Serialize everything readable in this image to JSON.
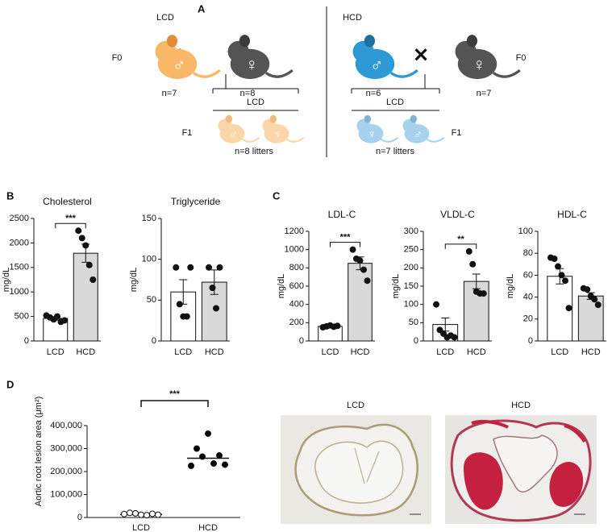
{
  "panel_a": {
    "letter": "A",
    "cross": "✕",
    "male": "♂",
    "female": "♀",
    "left": {
      "diet": "LCD",
      "generation_f0": "F0",
      "n_sire": "n=7",
      "n_dam": "n=8",
      "offspring_diet": "LCD",
      "generation_f1": "F1",
      "litters": "n=8 litters"
    },
    "right": {
      "diet": "HCD",
      "generation_f0": "F0",
      "n_sire": "n=6",
      "n_dam": "n=7",
      "offspring_diet": "LCD",
      "generation_f1": "F1",
      "litters": "n=7 litters"
    }
  },
  "panel_letters": {
    "b": "B",
    "c": "C",
    "d": "D"
  },
  "panel_d_images": [
    {
      "label": "LCD"
    },
    {
      "label": "HCD"
    }
  ],
  "chart_data": [
    {
      "type": "bar",
      "title": "Cholesterol",
      "ylabel": "mg/dL",
      "categories": [
        "LCD",
        "HCD"
      ],
      "values": [
        460,
        1790
      ],
      "errors": [
        35,
        185
      ],
      "points": [
        [
          520,
          480,
          440,
          500,
          390,
          420
        ],
        [
          2250,
          2100,
          1950,
          1550,
          1250
        ]
      ],
      "colors": [
        "#ffffff",
        "#d9d9d9"
      ],
      "ylim": [
        0,
        2500
      ],
      "yticks": [
        0,
        500,
        1000,
        1500,
        2000,
        2500
      ],
      "significance": "***"
    },
    {
      "type": "bar",
      "title": "Triglyceride",
      "ylabel": "mg/dL",
      "categories": [
        "LCD",
        "HCD"
      ],
      "values": [
        60,
        72
      ],
      "errors": [
        15,
        15
      ],
      "points": [
        [
          90,
          45,
          30,
          30,
          90
        ],
        [
          90,
          65,
          40,
          90
        ]
      ],
      "colors": [
        "#ffffff",
        "#d9d9d9"
      ],
      "ylim": [
        0,
        150
      ],
      "yticks": [
        0,
        50,
        100,
        150
      ]
    },
    {
      "type": "bar",
      "title": "LDL-C",
      "ylabel": "mg/dL",
      "categories": [
        "LCD",
        "HCD"
      ],
      "values": [
        160,
        850
      ],
      "errors": [
        15,
        70
      ],
      "points": [
        [
          150,
          160,
          170,
          155,
          165
        ],
        [
          1000,
          900,
          880,
          780,
          660
        ]
      ],
      "colors": [
        "#ffffff",
        "#d9d9d9"
      ],
      "ylim": [
        0,
        1200
      ],
      "yticks": [
        0,
        200,
        400,
        600,
        800,
        1000,
        1200
      ],
      "significance": "***"
    },
    {
      "type": "bar",
      "title": "VLDL-C",
      "ylabel": "mg/dL",
      "categories": [
        "LCD",
        "HCD"
      ],
      "values": [
        45,
        163
      ],
      "errors": [
        18,
        20
      ],
      "points": [
        [
          100,
          30,
          20,
          10,
          15,
          10
        ],
        [
          245,
          210,
          135,
          130,
          130
        ]
      ],
      "colors": [
        "#ffffff",
        "#d9d9d9"
      ],
      "ylim": [
        0,
        300
      ],
      "yticks": [
        0,
        50,
        100,
        150,
        200,
        250,
        300
      ],
      "significance": "**"
    },
    {
      "type": "bar",
      "title": "HDL-C",
      "ylabel": "mg/dL",
      "categories": [
        "LCD",
        "HCD"
      ],
      "values": [
        59,
        41
      ],
      "errors": [
        7,
        3
      ],
      "points": [
        [
          76,
          75,
          68,
          60,
          55,
          30
        ],
        [
          48,
          47,
          41,
          38,
          33
        ]
      ],
      "colors": [
        "#ffffff",
        "#d9d9d9"
      ],
      "ylim": [
        0,
        100
      ],
      "yticks": [
        0,
        20,
        40,
        60,
        80,
        100
      ]
    },
    {
      "type": "dot",
      "ylabel": "Aortic root lesion area (μm²)",
      "categories": [
        "LCD",
        "HCD"
      ],
      "values": [
        13000,
        258000
      ],
      "points": [
        [
          15000,
          20000,
          18000,
          12000,
          10000,
          16000,
          12000
        ],
        [
          225000,
          300000,
          265000,
          365000,
          235000,
          270000,
          230000
        ]
      ],
      "colors": [
        "#ffffff",
        "#000000"
      ],
      "ylim": [
        0,
        400000
      ],
      "yticks": [
        0,
        {
          "value": 100000,
          "label": "100,000"
        },
        {
          "value": 200000,
          "label": "200,000"
        },
        {
          "value": 300000,
          "label": "300,000"
        },
        {
          "value": 400000,
          "label": "400,000"
        }
      ],
      "significance": "***"
    }
  ]
}
